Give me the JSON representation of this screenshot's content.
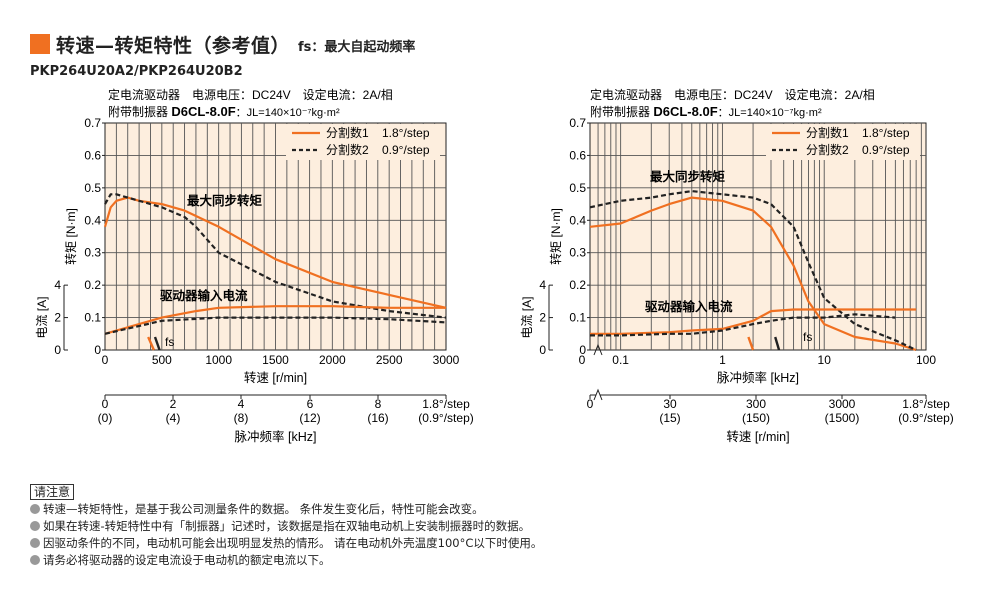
{
  "header": {
    "title": "转速—转矩特性（参考值）",
    "fs_note": "fs：最大自起动频率"
  },
  "model": "PKP264U20A2/PKP264U20B2",
  "conditions": {
    "line1": "定电流驱动器　电源电压：DC24V　设定电流：2A/相",
    "line2_prefix": "附带制振器",
    "line2_code": "D6CL-8.0F",
    "line2_suffix": "：JL=140×10⁻⁷kg·m²"
  },
  "notes": {
    "title": "请注意",
    "items": [
      "转速—转矩特性，是基于我公司测量条件的数据。 条件发生变化后，特性可能会改变。",
      "如果在转速-转矩特性中有「制振器」记述时，该数据是指在双轴电动机上安装制振器时的数据。",
      "因驱动条件的不同，电动机可能会出现明显发热的情形。 请在电动机外壳温度100°C以下时使用。",
      "请务必将驱动器的设定电流设于电动机的额定电流以下。"
    ]
  },
  "colors": {
    "orange": "#f07021",
    "black": "#222222",
    "panel": "#fdeede"
  },
  "chart_data": [
    {
      "type": "line",
      "x_scale": "linear",
      "xlabel": "转速 [r/min]",
      "xlim": [
        0,
        3000
      ],
      "xticks": [
        "0",
        "500",
        "1000",
        "1500",
        "2000",
        "2500",
        "3000"
      ],
      "ylabel_torque": "转矩 [N·m]",
      "ylim_torque": [
        0,
        0.7
      ],
      "yticks_torque": [
        "0",
        "0.1",
        "0.2",
        "0.3",
        "0.4",
        "0.5",
        "0.6",
        "0.7"
      ],
      "ylabel_current": "电流 [A]",
      "yticks_current": [
        "0",
        "2",
        "4"
      ],
      "secondary_axis": {
        "label": "脉冲频率 [kHz]",
        "ticks": [
          "0",
          "2",
          "4",
          "6",
          "8",
          "1.8°/step"
        ],
        "ticks_sub": [
          "(0)",
          "(4)",
          "(8)",
          "(12)",
          "(16)",
          "(0.9°/step)"
        ]
      },
      "legend": {
        "position": "top-right",
        "entries": [
          {
            "name": "分割数1",
            "value": "1.8°/step",
            "style": "solid"
          },
          {
            "name": "分割数2",
            "value": "0.9°/step",
            "style": "dashed"
          }
        ]
      },
      "annotations": [
        "最大同步转矩",
        "驱动器输入电流",
        "fs"
      ],
      "series": [
        {
          "name": "分割数1 转矩",
          "style": "solid",
          "x": [
            0,
            50,
            100,
            200,
            300,
            500,
            700,
            1000,
            1500,
            2000,
            2500,
            3000
          ],
          "y": [
            0.38,
            0.44,
            0.46,
            0.47,
            0.46,
            0.45,
            0.43,
            0.38,
            0.28,
            0.21,
            0.17,
            0.13
          ]
        },
        {
          "name": "分割数2 转矩",
          "style": "dashed",
          "x": [
            0,
            50,
            100,
            200,
            300,
            500,
            700,
            800,
            1000,
            1500,
            2000,
            2500,
            3000
          ],
          "y": [
            0.45,
            0.48,
            0.48,
            0.47,
            0.46,
            0.44,
            0.41,
            0.38,
            0.3,
            0.21,
            0.15,
            0.12,
            0.1
          ]
        },
        {
          "name": "分割数1 电流",
          "style": "solid",
          "x": [
            0,
            500,
            800,
            1000,
            1500,
            2000,
            2500,
            3000
          ],
          "y": [
            0.05,
            0.1,
            0.12,
            0.13,
            0.135,
            0.135,
            0.13,
            0.13
          ]
        },
        {
          "name": "分割数2 电流",
          "style": "dashed",
          "x": [
            0,
            500,
            1000,
            1500,
            2000,
            2500,
            3000
          ],
          "y": [
            0.05,
            0.09,
            0.1,
            0.1,
            0.1,
            0.095,
            0.085
          ]
        }
      ],
      "fs_markers": [
        {
          "x": [
            380,
            430
          ],
          "y": [
            0.04,
            0.0
          ]
        },
        {
          "x": [
            440,
            480
          ],
          "y": [
            0.04,
            0.0
          ]
        }
      ]
    },
    {
      "type": "line",
      "x_scale": "log",
      "xlabel": "脉冲频率 [kHz]",
      "xlim": [
        0.05,
        100
      ],
      "xticks": [
        "0",
        "0.1",
        "1",
        "10",
        "100"
      ],
      "ylabel_torque": "转矩 [N·m]",
      "ylim_torque": [
        0,
        0.7
      ],
      "yticks_torque": [
        "0",
        "0.1",
        "0.2",
        "0.3",
        "0.4",
        "0.5",
        "0.6",
        "0.7"
      ],
      "ylabel_current": "电流 [A]",
      "yticks_current": [
        "0",
        "2",
        "4"
      ],
      "secondary_axis": {
        "label": "转速 [r/min]",
        "ticks": [
          "0",
          "30",
          "300",
          "3000",
          "1.8°/step"
        ],
        "ticks_sub": [
          "",
          "(15)",
          "(150)",
          "(1500)",
          "(0.9°/step)"
        ]
      },
      "legend": {
        "position": "top-right",
        "entries": [
          {
            "name": "分割数1",
            "value": "1.8°/step",
            "style": "solid"
          },
          {
            "name": "分割数2",
            "value": "0.9°/step",
            "style": "dashed"
          }
        ]
      },
      "annotations": [
        "最大同步转矩",
        "驱动器输入电流",
        "fs"
      ],
      "series": [
        {
          "name": "分割数1 转矩",
          "style": "solid",
          "x": [
            0.05,
            0.1,
            0.2,
            0.3,
            0.5,
            1,
            2,
            3,
            5,
            7,
            10,
            20,
            50,
            80
          ],
          "y": [
            0.38,
            0.39,
            0.43,
            0.45,
            0.47,
            0.46,
            0.43,
            0.38,
            0.26,
            0.15,
            0.08,
            0.04,
            0.02,
            0.0
          ]
        },
        {
          "name": "分割数2 转矩",
          "style": "dashed",
          "x": [
            0.05,
            0.1,
            0.2,
            0.3,
            0.5,
            1,
            2,
            3,
            5,
            7,
            10,
            20,
            50,
            80
          ],
          "y": [
            0.44,
            0.46,
            0.47,
            0.48,
            0.49,
            0.48,
            0.47,
            0.45,
            0.38,
            0.27,
            0.16,
            0.08,
            0.03,
            0.0
          ]
        },
        {
          "name": "分割数1 电流",
          "style": "solid",
          "x": [
            0.05,
            0.1,
            0.3,
            0.5,
            1,
            2,
            3,
            5,
            10,
            20,
            50,
            80
          ],
          "y": [
            0.05,
            0.05,
            0.055,
            0.06,
            0.065,
            0.09,
            0.12,
            0.125,
            0.125,
            0.125,
            0.125,
            0.125
          ]
        },
        {
          "name": "分割数2 电流",
          "style": "dashed",
          "x": [
            0.05,
            0.1,
            0.3,
            0.5,
            1,
            2,
            3,
            5,
            7,
            10,
            20,
            50
          ],
          "y": [
            0.045,
            0.045,
            0.05,
            0.05,
            0.06,
            0.08,
            0.09,
            0.1,
            0.1,
            0.1,
            0.11,
            0.1
          ]
        }
      ],
      "fs_markers": [
        {
          "x": [
            1.8,
            2.0
          ],
          "y": [
            0.04,
            0.0
          ]
        },
        {
          "x": [
            3.3,
            3.6
          ],
          "y": [
            0.04,
            0.0
          ]
        }
      ]
    }
  ]
}
